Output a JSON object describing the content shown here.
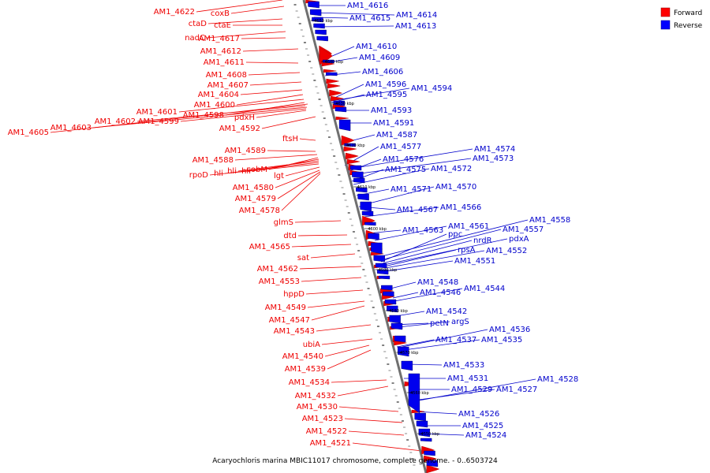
{
  "caption": "Acaryochloris marina MBIC11017 chromosome, complete genome. - 0..6503724",
  "legend": [
    {
      "label": "Forward",
      "color": "#ff0000"
    },
    {
      "label": "Reverse",
      "color": "#0000ff"
    }
  ],
  "colors": {
    "forward": "#ee0000",
    "reverse": "#0000ee",
    "axis": "#707070",
    "forward_text": "#ee0000",
    "reverse_text": "#0000cc"
  },
  "ticks": [
    "4650 kbp",
    "4640 kbp",
    "4630 kbp",
    "4620 kbp",
    "4610 kbp",
    "4600 kbp",
    "4590 kbp",
    "4580 kbp",
    "4570 kbp",
    "4560 kbp",
    "4550 kbp"
  ],
  "forward_labels": [
    "AM1_4622",
    "coxB",
    "ctaD",
    "ctaE",
    "nadC",
    "AM1_4617",
    "AM1_4612",
    "AM1_4611",
    "AM1_4608",
    "AM1_4607",
    "AM1_4604",
    "AM1_4600",
    "AM1_4601",
    "AM1_4598",
    "AM1_4602",
    "pdxH",
    "AM1_4599",
    "AM1_4603",
    "AM1_4605",
    "AM1_4592",
    "ftsH",
    "AM1_4589",
    "AM1_4588",
    "cobM",
    "hli",
    "hli",
    "hli",
    "rpoD",
    "lgt",
    "AM1_4580",
    "AM1_4579",
    "AM1_4578",
    "glmS",
    "dtd",
    "AM1_4565",
    "sat",
    "AM1_4562",
    "AM1_4553",
    "hppD",
    "AM1_4549",
    "AM1_4547",
    "AM1_4543",
    "ubiA",
    "AM1_4540",
    "AM1_4539",
    "AM1_4534",
    "AM1_4532",
    "AM1_4530",
    "AM1_4523",
    "AM1_4522",
    "AM1_4521"
  ],
  "reverse_labels": [
    "AM1_4616",
    "AM1_4615",
    "AM1_4614",
    "AM1_4613",
    "AM1_4610",
    "AM1_4609",
    "AM1_4606",
    "AM1_4596",
    "AM1_4594",
    "AM1_4595",
    "AM1_4593",
    "AM1_4591",
    "AM1_4587",
    "AM1_4577",
    "AM1_4574",
    "AM1_4576",
    "AM1_4573",
    "AM1_4575",
    "AM1_4572",
    "AM1_4571",
    "AM1_4570",
    "AM1_4567",
    "AM1_4566",
    "AM1_4558",
    "AM1_4563",
    "AM1_4561",
    "AM1_4557",
    "ppc",
    "nrdR",
    "pdxA",
    "rpsA",
    "AM1_4552",
    "AM1_4551",
    "AM1_4548",
    "AM1_4546",
    "AM1_4544",
    "AM1_4542",
    "petN",
    "argS",
    "AM1_4536",
    "AM1_4537",
    "AM1_4535",
    "AM1_4533",
    "AM1_4531",
    "AM1_4528",
    "AM1_4529",
    "AM1_4527",
    "AM1_4526",
    "AM1_4525",
    "AM1_4524"
  ]
}
